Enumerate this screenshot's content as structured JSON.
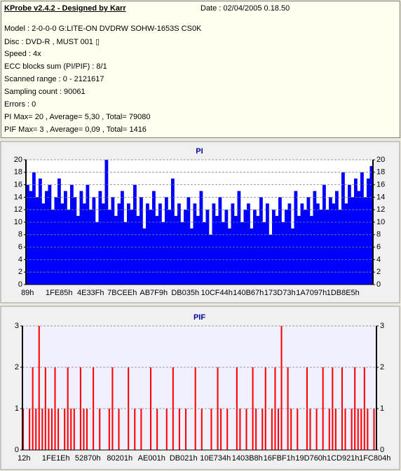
{
  "header": {
    "title": "KProbe v2.4.2 - Designed by Karr",
    "date": "Date : 02/04/2005 0.18.50",
    "lines": [
      "Model : 2-0-0-0 G:LITE-ON DVDRW SOHW-1653S CS0K",
      "Disc : DVD-R , MUST 001 ▯",
      "Speed : 4x",
      "ECC blocks sum (PI/PIF) : 8/1",
      "Scanned range : 0 - 2121617",
      "Sampling count : 90061",
      "Errors : 0",
      "PI Max= 20 , Average= 5,30 , Total= 79080",
      "PIF Max= 3 , Average= 0,09 , Total= 1416"
    ]
  },
  "chart_data": [
    {
      "type": "bar",
      "title": "PI",
      "color": "#0000ff",
      "background": "#ffffff",
      "grid": true,
      "ylim": [
        0,
        20
      ],
      "yticks": [
        0,
        2,
        4,
        6,
        8,
        10,
        12,
        14,
        16,
        18,
        20
      ],
      "categories": [
        "89h",
        null,
        null,
        null,
        null,
        null,
        null,
        null,
        null,
        null,
        "1FE85h",
        null,
        null,
        null,
        null,
        null,
        null,
        null,
        null,
        null,
        "4E33Fh",
        null,
        null,
        null,
        null,
        null,
        null,
        null,
        null,
        null,
        "7BCEEh",
        null,
        null,
        null,
        null,
        null,
        null,
        null,
        null,
        null,
        "AB7F9h",
        null,
        null,
        null,
        null,
        null,
        null,
        null,
        null,
        null,
        "DB035h",
        null,
        null,
        null,
        null,
        null,
        null,
        null,
        null,
        null,
        "10CF44h",
        null,
        null,
        null,
        null,
        null,
        null,
        null,
        null,
        null,
        "140B67h",
        null,
        null,
        null,
        null,
        null,
        null,
        null,
        null,
        null,
        "173D73h",
        null,
        null,
        null,
        null,
        null,
        null,
        null,
        null,
        null,
        "1A7097h",
        null,
        null,
        null,
        null,
        null,
        null,
        null,
        null,
        null,
        "1DB8E5h",
        null,
        null,
        null,
        null,
        null,
        null,
        null,
        null,
        null
      ],
      "values": [
        16,
        15,
        18,
        14,
        17,
        13,
        15,
        16,
        12,
        14,
        17,
        13,
        15,
        12,
        16,
        14,
        11,
        15,
        13,
        16,
        12,
        14,
        10,
        15,
        13,
        20,
        12,
        14,
        11,
        13,
        15,
        10,
        13,
        12,
        16,
        11,
        14,
        9,
        13,
        12,
        15,
        11,
        13,
        10,
        14,
        12,
        17,
        11,
        13,
        10,
        12,
        14,
        9,
        13,
        11,
        15,
        10,
        12,
        8,
        13,
        11,
        14,
        10,
        12,
        9,
        13,
        11,
        15,
        10,
        12,
        13,
        9,
        12,
        11,
        14,
        10,
        13,
        8,
        12,
        11,
        14,
        10,
        12,
        13,
        9,
        15,
        11,
        13,
        12,
        14,
        11,
        15,
        13,
        12,
        16,
        12,
        14,
        13,
        15,
        12,
        18,
        13,
        16,
        14,
        17,
        15,
        18,
        14,
        17,
        19
      ]
    },
    {
      "type": "bar",
      "title": "PIF",
      "color": "#ff0000",
      "background": "#f0f0ff",
      "grid": true,
      "ylim": [
        0,
        3
      ],
      "yticks": [
        0,
        1,
        2,
        3
      ],
      "categories": [
        "12h",
        null,
        null,
        null,
        null,
        null,
        null,
        null,
        null,
        null,
        "1FE1Eh",
        null,
        null,
        null,
        null,
        null,
        null,
        null,
        null,
        null,
        "52870h",
        null,
        null,
        null,
        null,
        null,
        null,
        null,
        null,
        null,
        "80201h",
        null,
        null,
        null,
        null,
        null,
        null,
        null,
        null,
        null,
        "AE001h",
        null,
        null,
        null,
        null,
        null,
        null,
        null,
        null,
        null,
        "DB021h",
        null,
        null,
        null,
        null,
        null,
        null,
        null,
        null,
        null,
        "10E734h",
        null,
        null,
        null,
        null,
        null,
        null,
        null,
        null,
        null,
        "1403B8h",
        null,
        null,
        null,
        null,
        null,
        null,
        null,
        null,
        null,
        "16FBF1h",
        null,
        null,
        null,
        null,
        null,
        null,
        null,
        null,
        null,
        "19D760h",
        null,
        null,
        null,
        null,
        null,
        null,
        null,
        null,
        null,
        "1CD921h",
        null,
        null,
        null,
        null,
        null,
        null,
        null,
        null,
        null,
        "1FC804h"
      ],
      "values": [
        1,
        0,
        1,
        2,
        1,
        3,
        1,
        2,
        1,
        1,
        2,
        1,
        0,
        1,
        2,
        1,
        1,
        0,
        2,
        1,
        1,
        0,
        2,
        0,
        1,
        0,
        0,
        1,
        2,
        0,
        1,
        0,
        0,
        2,
        0,
        1,
        0,
        1,
        0,
        0,
        2,
        0,
        1,
        0,
        0,
        1,
        0,
        2,
        0,
        1,
        0,
        1,
        0,
        0,
        2,
        0,
        1,
        0,
        0,
        1,
        0,
        2,
        1,
        0,
        1,
        0,
        0,
        2,
        1,
        0,
        1,
        0,
        2,
        1,
        0,
        1,
        2,
        0,
        1,
        2,
        1,
        3,
        0,
        2,
        1,
        0,
        1,
        0,
        0,
        2,
        1,
        0,
        1,
        0,
        2,
        0,
        1,
        2,
        1,
        0,
        2,
        1,
        0,
        1,
        2,
        1,
        1,
        2,
        1,
        0,
        1
      ]
    }
  ]
}
